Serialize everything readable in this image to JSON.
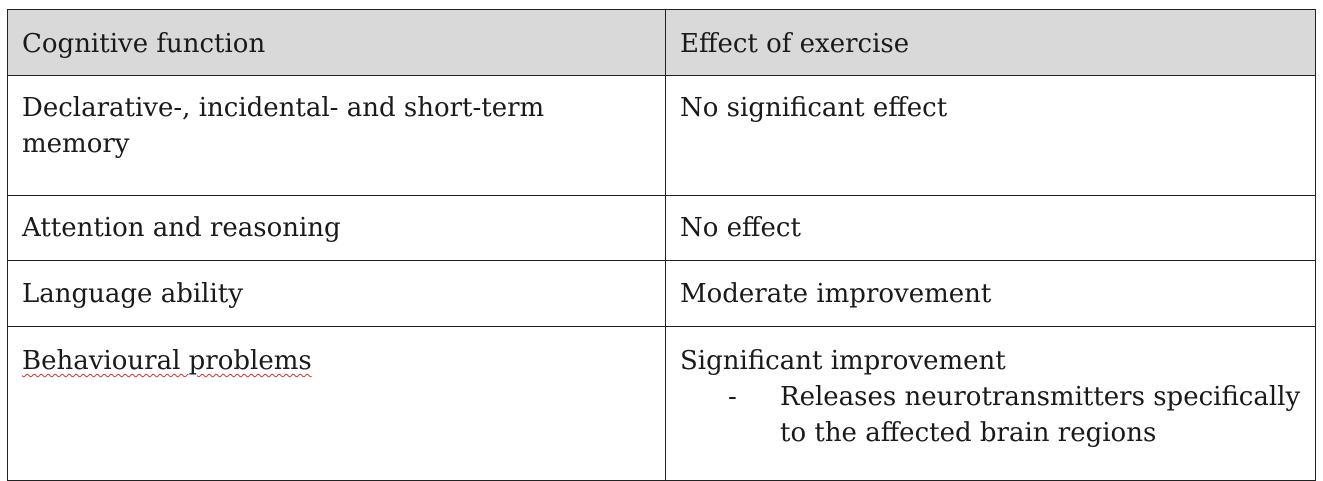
{
  "table": {
    "headers": [
      "Cognitive function",
      "Effect of exercise"
    ],
    "rows": [
      {
        "function": "Declarative-, incidental- and short-term memory",
        "effect": "No significant effect"
      },
      {
        "function": "Attention and reasoning",
        "effect": "No effect"
      },
      {
        "function": "Language ability",
        "effect": "Moderate improvement"
      },
      {
        "function": "Behavioural problems",
        "effect": "Significant improvement",
        "bullet_marker": "-",
        "bullet": "Releases neurotransmitters specifically to the affected brain regions"
      }
    ]
  },
  "spellcheck_underline_color": "#d03030"
}
